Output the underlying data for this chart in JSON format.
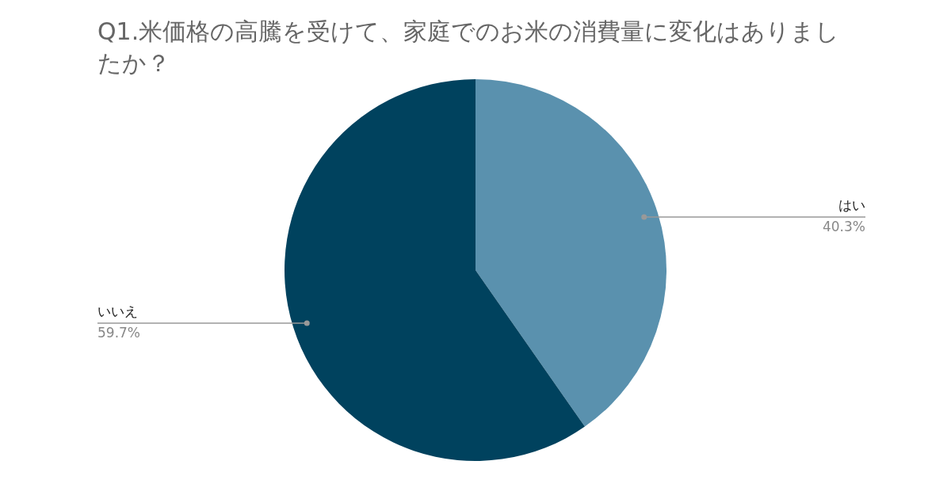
{
  "chart_data": {
    "type": "pie",
    "title": "Q1.米価格の高騰を受けて、家庭でのお米の消費量に変化はありましたか？",
    "categories": [
      "はい",
      "いいえ"
    ],
    "values": [
      40.3,
      59.7
    ],
    "value_labels": [
      "40.3%",
      "59.7%"
    ],
    "colors": [
      "#5a91ae",
      "#00425e"
    ],
    "legend": false
  }
}
